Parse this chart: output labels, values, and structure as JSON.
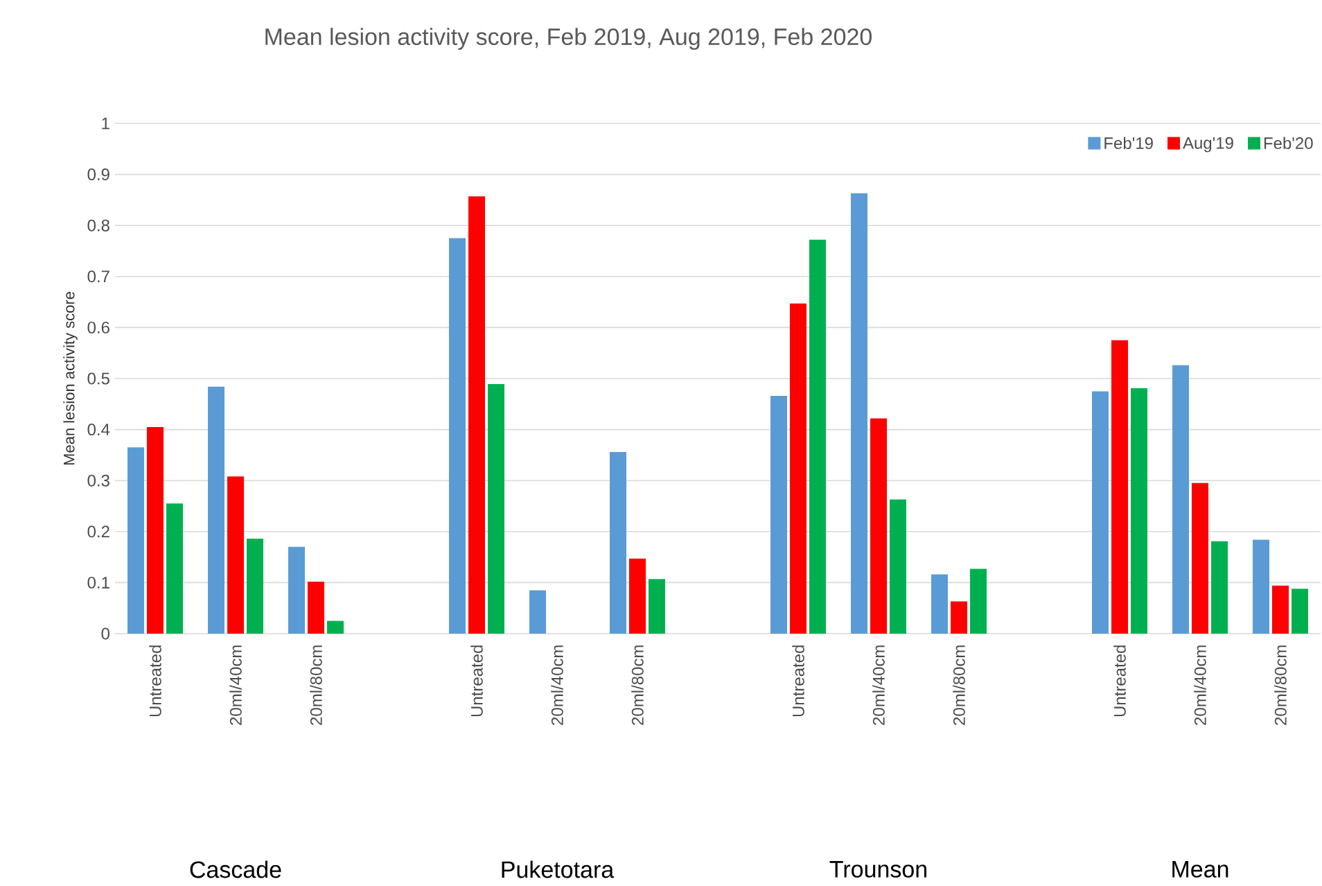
{
  "chart_data": {
    "type": "bar",
    "title": "Mean lesion activity score, Feb 2019, Aug 2019, Feb 2020",
    "ylabel": "Mean lesion activity score",
    "categories": [
      "Untreated",
      "20ml/40cm",
      "20ml/80cm",
      null,
      "Untreated",
      "20ml/40cm",
      "20ml/80cm",
      null,
      "Untreated",
      "20ml/40cm",
      "20ml/80cm",
      null,
      "Untreated",
      "20ml/40cm",
      "20ml/80cm"
    ],
    "series": [
      {
        "name": "Feb'19",
        "color": "#5b9bd5",
        "values": [
          0.365,
          0.484,
          0.17,
          null,
          0.775,
          0.085,
          0.356,
          null,
          0.466,
          0.863,
          0.116,
          null,
          0.475,
          0.526,
          0.184
        ]
      },
      {
        "name": "Aug'19",
        "color": "#ff0000",
        "values": [
          0.405,
          0.308,
          0.102,
          null,
          0.857,
          null,
          0.147,
          null,
          0.647,
          0.422,
          0.063,
          null,
          0.575,
          0.295,
          0.094
        ]
      },
      {
        "name": "Feb'20",
        "color": "#00b050",
        "values": [
          0.255,
          0.186,
          0.025,
          null,
          0.489,
          null,
          0.107,
          null,
          0.772,
          0.263,
          0.127,
          null,
          0.481,
          0.181,
          0.088
        ]
      }
    ],
    "annotations": [
      "Cascade",
      "Puketotara",
      "Trounson",
      "Mean"
    ],
    "ylim": [
      0,
      1
    ],
    "yticks": [
      0,
      0.1,
      0.2,
      0.3,
      0.4,
      0.5,
      0.6,
      0.7,
      0.8,
      0.9,
      1
    ],
    "grid": "y",
    "legend": "top right"
  }
}
